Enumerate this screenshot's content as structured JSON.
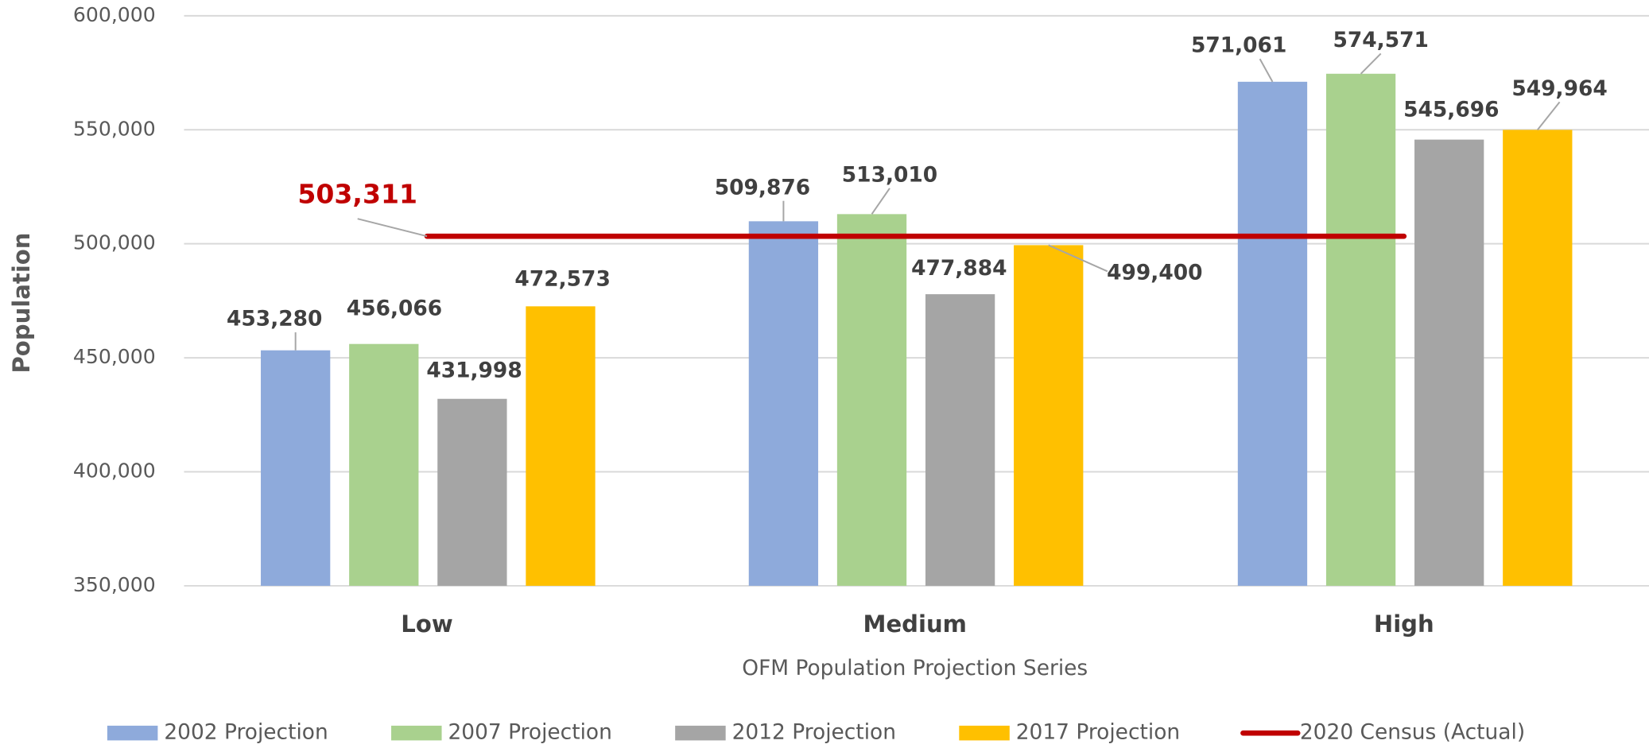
{
  "chart_data": {
    "type": "bar",
    "x_label": "OFM Population Projection Series",
    "y_label": "Population",
    "categories": [
      "Low",
      "Medium",
      "High"
    ],
    "series": [
      {
        "name": "2002 Projection",
        "color": "#8eaadb",
        "values": [
          453280,
          509876,
          571061
        ],
        "value_labels": [
          "453,280",
          "509,876",
          "571,061"
        ]
      },
      {
        "name": "2007 Projection",
        "color": "#a9d18e",
        "values": [
          456066,
          513010,
          574571
        ],
        "value_labels": [
          "456,066",
          "513,010",
          "574,571"
        ]
      },
      {
        "name": "2012 Projection",
        "color": "#a5a5a5",
        "values": [
          431998,
          477884,
          545696
        ],
        "value_labels": [
          "431,998",
          "477,884",
          "545,696"
        ]
      },
      {
        "name": "2017 Projection",
        "color": "#ffc000",
        "values": [
          472573,
          499400,
          549964
        ],
        "value_labels": [
          "472,573",
          "499,400",
          "549,964"
        ]
      },
      {
        "name": "2020 Census (Actual)",
        "type": "line",
        "color": "#c00000",
        "values": [
          503311,
          503311,
          503311
        ],
        "value_labels": [
          "503,311",
          null,
          null
        ]
      }
    ],
    "ylim": [
      350000,
      600000
    ],
    "yticks": [
      {
        "value": 350000,
        "label": "350,000"
      },
      {
        "value": 400000,
        "label": "400,000"
      },
      {
        "value": 450000,
        "label": "450,000"
      },
      {
        "value": 500000,
        "label": "500,000"
      },
      {
        "value": 550000,
        "label": "550,000"
      },
      {
        "value": 600000,
        "label": "600,000"
      }
    ],
    "grid": true,
    "legend": "bottom"
  }
}
